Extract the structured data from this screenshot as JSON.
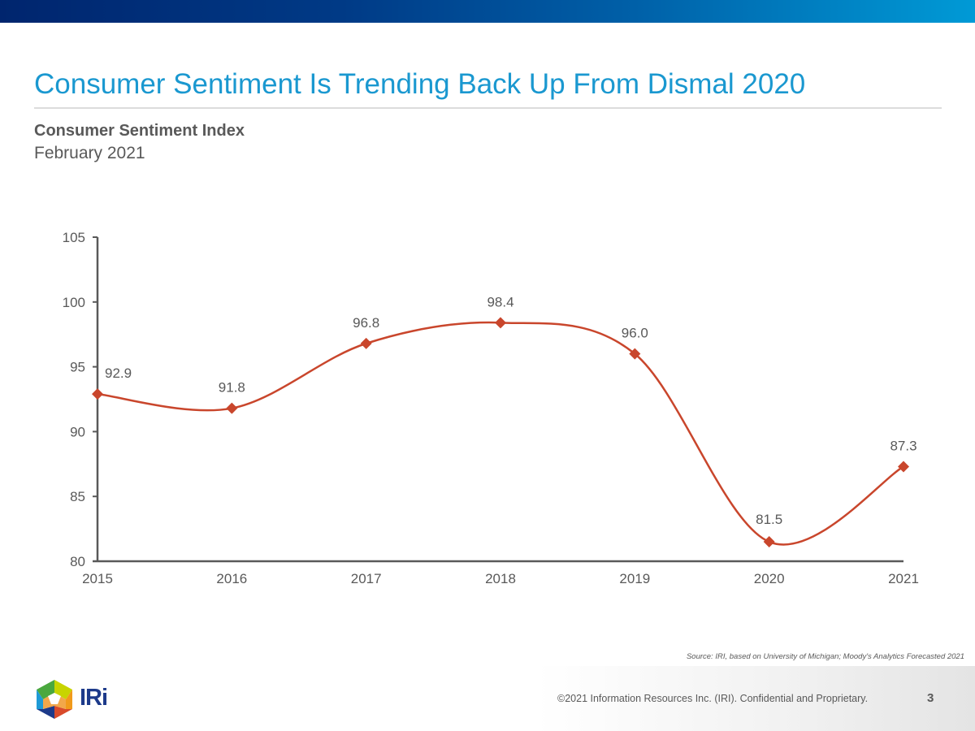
{
  "slide": {
    "title": "Consumer Sentiment Is Trending Back Up From Dismal 2020",
    "subtitle": "Consumer Sentiment Index",
    "date": "February 2021",
    "source": "Source: IRI, based on University of Michigan; Moody's Analytics Forecasted 2021",
    "footer": {
      "logo_text": "IRi",
      "copyright": "©2021 Information Resources Inc. (IRI). Confidential and Proprietary.",
      "page_number": "3"
    },
    "colors": {
      "title": "#1a98d0",
      "series": "#c9462c",
      "axis": "#595959",
      "text": "#595959"
    }
  },
  "chart_data": {
    "type": "line",
    "title": "Consumer Sentiment Index",
    "subtitle": "February 2021",
    "xlabel": "",
    "ylabel": "",
    "categories": [
      "2015",
      "2016",
      "2017",
      "2018",
      "2019",
      "2020",
      "2021"
    ],
    "series": [
      {
        "name": "Consumer Sentiment Index",
        "values": [
          92.9,
          91.8,
          96.8,
          98.4,
          96.0,
          81.5,
          87.3
        ],
        "labels": [
          "92.9",
          "91.8",
          "96.8",
          "98.4",
          "96.0",
          "81.5",
          "87.3"
        ],
        "marker": "diamond",
        "smooth": true
      }
    ],
    "ylim": [
      80,
      105
    ],
    "yticks": [
      80,
      85,
      90,
      95,
      100,
      105
    ],
    "grid": false,
    "legend": "none"
  }
}
